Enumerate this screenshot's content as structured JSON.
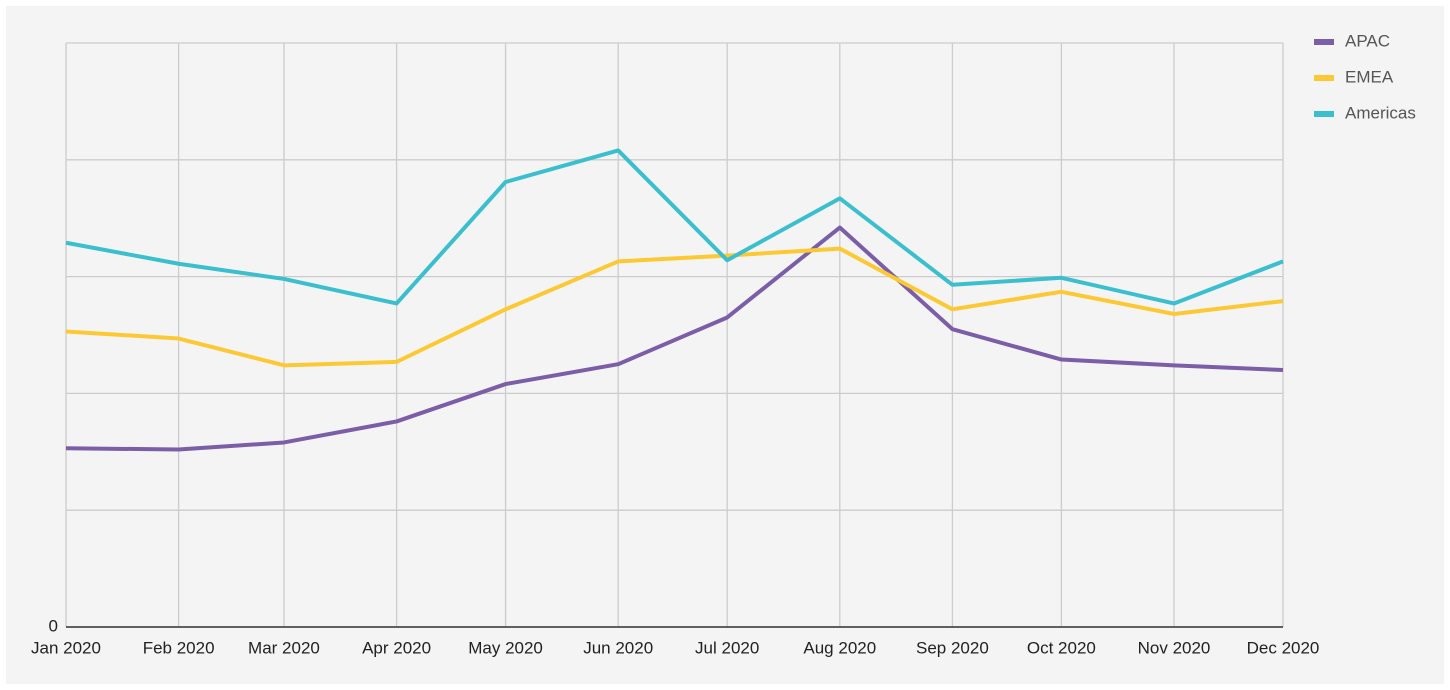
{
  "chart_data": {
    "type": "line",
    "x": [
      "Jan 2020",
      "Feb 2020",
      "Mar 2020",
      "Apr 2020",
      "May 2020",
      "Jun 2020",
      "Jul 2020",
      "Aug 2020",
      "Sep 2020",
      "Oct 2020",
      "Nov 2020",
      "Dec 2020"
    ],
    "series": [
      {
        "name": "APAC",
        "color": "#7b5ea7",
        "values": [
          1.53,
          1.52,
          1.58,
          1.76,
          2.08,
          2.25,
          2.65,
          3.42,
          2.55,
          2.29,
          2.24,
          2.2
        ]
      },
      {
        "name": "EMEA",
        "color": "#fcc934",
        "values": [
          2.53,
          2.47,
          2.24,
          2.27,
          2.72,
          3.13,
          3.18,
          3.24,
          2.72,
          2.87,
          2.68,
          2.79
        ]
      },
      {
        "name": "Americas",
        "color": "#3bbfcf",
        "values": [
          3.29,
          3.11,
          2.98,
          2.77,
          3.81,
          4.08,
          3.14,
          3.67,
          2.93,
          2.99,
          2.77,
          3.13
        ]
      }
    ],
    "ylim": [
      0,
      5
    ],
    "yticks": [
      0
    ],
    "ygrid": [
      0,
      1,
      2,
      3,
      4,
      5
    ],
    "grid": true,
    "legend": "top-right"
  }
}
